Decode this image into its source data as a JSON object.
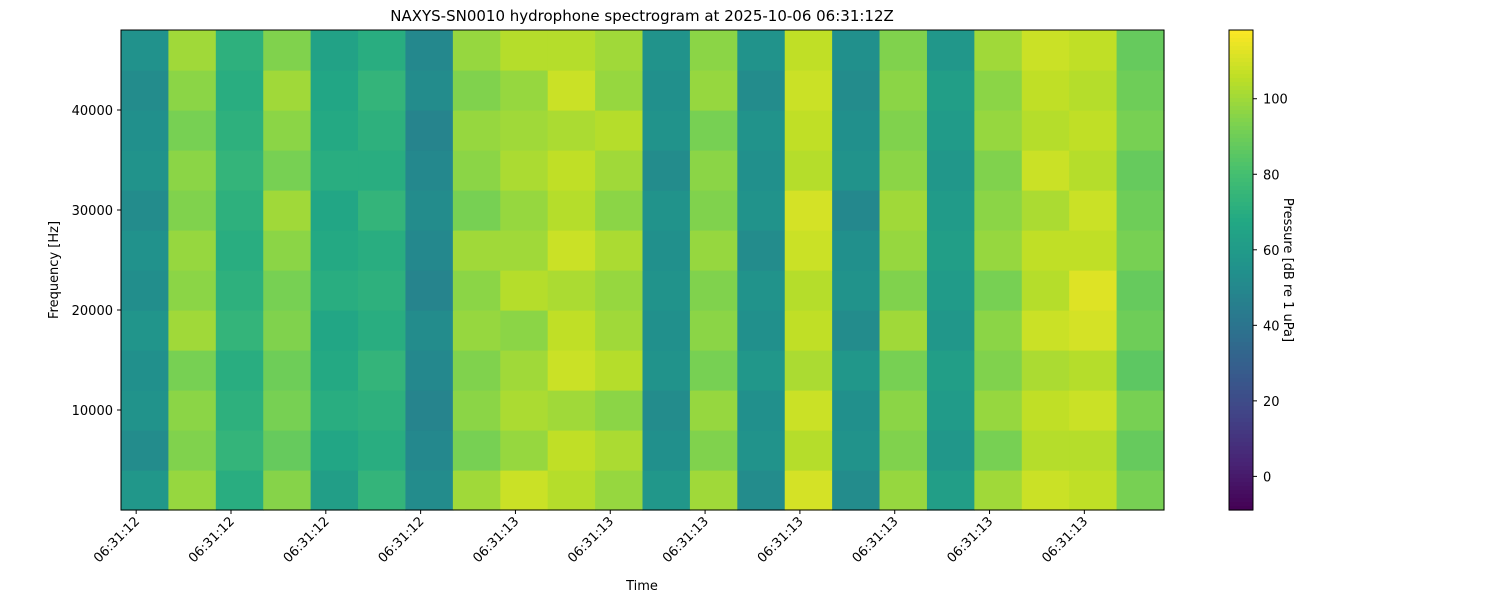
{
  "chart_data": {
    "type": "heatmap",
    "title": "NAXYS-SN0010 hydrophone spectrogram at 2025-10-06 06:31:12Z",
    "x_label": "Time",
    "y_label": "Frequency [Hz]",
    "colorbar_label": "Pressure [dB re 1 uPa]",
    "colormap": "viridis",
    "x": [
      12.609,
      12.659,
      12.709,
      12.759,
      12.809,
      12.859,
      12.909,
      12.959,
      13.009,
      13.059,
      13.109,
      13.159,
      13.209,
      13.259,
      13.309,
      13.359,
      13.409,
      13.459,
      13.509,
      13.559,
      13.609,
      13.659
    ],
    "y": [
      2000,
      6000,
      10000,
      14000,
      18000,
      22000,
      26000,
      30000,
      34000,
      38000,
      42000,
      46000
    ],
    "z": [
      [
        58,
        98,
        70,
        95,
        62,
        74,
        52,
        100,
        108,
        104,
        98,
        58,
        100,
        52,
        110,
        52,
        98,
        62,
        100,
        108,
        106,
        92
      ],
      [
        52,
        94,
        74,
        88,
        66,
        70,
        50,
        92,
        98,
        106,
        102,
        54,
        94,
        56,
        104,
        56,
        94,
        58,
        92,
        104,
        104,
        88
      ],
      [
        56,
        96,
        72,
        92,
        70,
        72,
        48,
        96,
        102,
        100,
        96,
        52,
        98,
        54,
        108,
        54,
        96,
        60,
        98,
        106,
        108,
        92
      ],
      [
        54,
        92,
        70,
        90,
        68,
        74,
        50,
        94,
        100,
        108,
        104,
        56,
        92,
        58,
        102,
        58,
        92,
        62,
        94,
        102,
        104,
        86
      ],
      [
        57,
        100,
        74,
        94,
        66,
        70,
        52,
        98,
        96,
        106,
        100,
        54,
        96,
        54,
        106,
        52,
        100,
        58,
        96,
        108,
        110,
        90
      ],
      [
        53,
        96,
        72,
        92,
        70,
        72,
        48,
        96,
        104,
        102,
        98,
        56,
        94,
        56,
        104,
        56,
        94,
        60,
        92,
        104,
        112,
        88
      ],
      [
        55,
        98,
        70,
        96,
        68,
        70,
        50,
        100,
        100,
        108,
        102,
        54,
        98,
        52,
        108,
        54,
        98,
        62,
        98,
        106,
        106,
        92
      ],
      [
        52,
        94,
        72,
        100,
        66,
        74,
        52,
        92,
        98,
        104,
        96,
        56,
        94,
        56,
        110,
        50,
        100,
        60,
        96,
        102,
        108,
        90
      ],
      [
        56,
        96,
        74,
        92,
        70,
        70,
        50,
        96,
        102,
        106,
        100,
        52,
        96,
        54,
        104,
        56,
        96,
        58,
        94,
        108,
        104,
        88
      ],
      [
        54,
        92,
        72,
        96,
        68,
        72,
        48,
        98,
        100,
        102,
        104,
        56,
        92,
        56,
        106,
        54,
        94,
        60,
        98,
        104,
        106,
        92
      ],
      [
        52,
        96,
        70,
        100,
        66,
        74,
        52,
        94,
        98,
        108,
        98,
        54,
        98,
        52,
        108,
        52,
        96,
        62,
        96,
        106,
        104,
        90
      ],
      [
        55,
        100,
        72,
        94,
        64,
        70,
        50,
        98,
        104,
        104,
        100,
        56,
        96,
        56,
        106,
        54,
        94,
        58,
        100,
        108,
        106,
        88
      ]
    ],
    "xlim": [
      12.584,
      13.684
    ],
    "xticks": [
      {
        "value": 12.6,
        "label": "06:31:12"
      },
      {
        "value": 12.7,
        "label": "06:31:12"
      },
      {
        "value": 12.8,
        "label": "06:31:12"
      },
      {
        "value": 12.9,
        "label": "06:31:12"
      },
      {
        "value": 13.0,
        "label": "06:31:13"
      },
      {
        "value": 13.1,
        "label": "06:31:13"
      },
      {
        "value": 13.2,
        "label": "06:31:13"
      },
      {
        "value": 13.3,
        "label": "06:31:13"
      },
      {
        "value": 13.4,
        "label": "06:31:13"
      },
      {
        "value": 13.5,
        "label": "06:31:13"
      },
      {
        "value": 13.6,
        "label": "06:31:13"
      }
    ],
    "ylim": [
      0,
      48000
    ],
    "yticks": [
      10000,
      20000,
      30000,
      40000
    ],
    "clim": [
      -8.9,
      118.2
    ],
    "cticks": [
      0,
      20,
      40,
      60,
      80,
      100
    ]
  }
}
